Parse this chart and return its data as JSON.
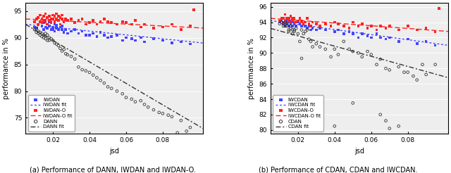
{
  "left_plot": {
    "xlabel": "jsd",
    "ylabel": "performance in %",
    "caption": "(a) Performance of DANN, IWDAN and IWDAN-O.",
    "xlim": [
      0.005,
      0.102
    ],
    "ylim": [
      72,
      96.5
    ],
    "yticks": [
      75,
      80,
      85,
      90,
      95
    ],
    "xticks": [
      0.02,
      0.04,
      0.06,
      0.08
    ],
    "series": {
      "IWDAN": {
        "color": "#4444ff",
        "marker": "s",
        "fit_style": "dotted",
        "scatter_x": [
          0.01,
          0.011,
          0.012,
          0.013,
          0.014,
          0.015,
          0.015,
          0.016,
          0.016,
          0.017,
          0.017,
          0.018,
          0.018,
          0.019,
          0.019,
          0.02,
          0.02,
          0.021,
          0.021,
          0.022,
          0.022,
          0.023,
          0.024,
          0.025,
          0.025,
          0.026,
          0.027,
          0.028,
          0.03,
          0.032,
          0.034,
          0.036,
          0.038,
          0.04,
          0.042,
          0.044,
          0.046,
          0.048,
          0.05,
          0.052,
          0.055,
          0.058,
          0.06,
          0.063,
          0.065,
          0.068,
          0.07,
          0.075,
          0.08,
          0.085,
          0.09,
          0.095
        ],
        "scatter_y": [
          92.0,
          91.8,
          92.5,
          93.0,
          92.2,
          91.5,
          92.8,
          92.0,
          93.2,
          92.5,
          91.8,
          92.2,
          93.0,
          91.5,
          92.8,
          92.0,
          91.5,
          92.5,
          91.2,
          91.8,
          92.3,
          91.5,
          92.0,
          91.5,
          92.2,
          91.0,
          91.5,
          90.8,
          91.2,
          91.5,
          90.8,
          91.2,
          90.5,
          90.5,
          90.8,
          90.2,
          91.0,
          90.5,
          90.0,
          90.2,
          90.5,
          89.5,
          90.0,
          89.8,
          89.5,
          90.0,
          89.2,
          89.8,
          89.5,
          89.0,
          89.2,
          88.8
        ],
        "fit_x": [
          0.005,
          0.102
        ],
        "fit_y": [
          92.5,
          89.0
        ]
      },
      "IWDAN-O": {
        "color": "#ff2222",
        "marker": "s",
        "fit_style": "dashed",
        "scatter_x": [
          0.01,
          0.011,
          0.012,
          0.012,
          0.013,
          0.013,
          0.014,
          0.014,
          0.015,
          0.015,
          0.016,
          0.016,
          0.017,
          0.017,
          0.018,
          0.018,
          0.019,
          0.019,
          0.02,
          0.02,
          0.021,
          0.021,
          0.022,
          0.022,
          0.023,
          0.023,
          0.024,
          0.024,
          0.025,
          0.025,
          0.026,
          0.027,
          0.028,
          0.03,
          0.032,
          0.034,
          0.036,
          0.038,
          0.04,
          0.042,
          0.044,
          0.046,
          0.048,
          0.05,
          0.052,
          0.055,
          0.058,
          0.06,
          0.063,
          0.065,
          0.068,
          0.07,
          0.075,
          0.08,
          0.085,
          0.09,
          0.095,
          0.097
        ],
        "scatter_y": [
          93.0,
          93.5,
          93.8,
          92.5,
          94.2,
          93.0,
          93.5,
          92.8,
          94.0,
          93.2,
          94.5,
          93.0,
          93.8,
          92.5,
          93.2,
          94.0,
          93.5,
          92.8,
          93.5,
          94.2,
          94.0,
          93.0,
          93.5,
          94.5,
          93.2,
          94.0,
          93.8,
          92.5,
          93.5,
          94.2,
          93.0,
          93.5,
          93.2,
          93.5,
          92.8,
          93.2,
          93.5,
          92.5,
          92.8,
          93.2,
          92.5,
          93.0,
          93.5,
          93.0,
          92.8,
          92.5,
          93.0,
          92.8,
          92.5,
          93.2,
          92.0,
          92.5,
          91.8,
          92.0,
          92.5,
          91.5,
          92.2,
          95.2
        ],
        "fit_x": [
          0.005,
          0.102
        ],
        "fit_y": [
          93.5,
          91.8
        ]
      },
      "DANN": {
        "color": "#333333",
        "marker": "o",
        "fit_style": "dashdot",
        "scatter_x": [
          0.01,
          0.011,
          0.011,
          0.012,
          0.012,
          0.013,
          0.013,
          0.014,
          0.014,
          0.015,
          0.015,
          0.016,
          0.016,
          0.017,
          0.017,
          0.018,
          0.018,
          0.019,
          0.02,
          0.021,
          0.022,
          0.023,
          0.024,
          0.025,
          0.026,
          0.027,
          0.028,
          0.03,
          0.032,
          0.034,
          0.036,
          0.038,
          0.04,
          0.042,
          0.044,
          0.046,
          0.048,
          0.05,
          0.052,
          0.055,
          0.058,
          0.06,
          0.063,
          0.065,
          0.068,
          0.07,
          0.072,
          0.075,
          0.078,
          0.08,
          0.083,
          0.085,
          0.088,
          0.09,
          0.093,
          0.095
        ],
        "scatter_y": [
          91.5,
          91.8,
          91.0,
          91.2,
          90.8,
          91.0,
          90.5,
          90.8,
          90.2,
          90.5,
          90.0,
          90.8,
          89.8,
          90.5,
          89.5,
          90.0,
          89.5,
          89.8,
          89.5,
          89.0,
          88.8,
          88.5,
          88.0,
          87.5,
          87.8,
          87.0,
          86.8,
          86.5,
          86.0,
          84.5,
          84.0,
          83.8,
          83.5,
          83.0,
          82.5,
          82.0,
          81.5,
          80.8,
          80.5,
          80.0,
          79.5,
          78.8,
          78.5,
          78.0,
          78.2,
          77.5,
          77.0,
          76.5,
          76.0,
          75.8,
          75.5,
          75.2,
          72.2,
          74.5,
          72.5,
          73.2
        ],
        "fit_x": [
          0.005,
          0.102
        ],
        "fit_y": [
          92.5,
          73.0
        ]
      }
    }
  },
  "right_plot": {
    "xlabel": "jsd",
    "ylabel": "performance in %",
    "caption": "(b) Performance of CDAN, CDAN and IWCDAN.",
    "xlim": [
      0.005,
      0.102
    ],
    "ylim": [
      79.5,
      96.5
    ],
    "yticks": [
      80,
      82,
      84,
      86,
      88,
      90,
      92,
      94,
      96
    ],
    "xticks": [
      0.02,
      0.04,
      0.06,
      0.08
    ],
    "series": {
      "IWCDAN": {
        "color": "#4444ff",
        "marker": "s",
        "fit_style": "dotted",
        "scatter_x": [
          0.01,
          0.011,
          0.012,
          0.012,
          0.013,
          0.013,
          0.014,
          0.014,
          0.015,
          0.015,
          0.016,
          0.016,
          0.017,
          0.017,
          0.018,
          0.018,
          0.019,
          0.02,
          0.021,
          0.022,
          0.022,
          0.023,
          0.024,
          0.025,
          0.026,
          0.027,
          0.028,
          0.03,
          0.032,
          0.035,
          0.038,
          0.04,
          0.042,
          0.045,
          0.048,
          0.05,
          0.053,
          0.055,
          0.058,
          0.06,
          0.063,
          0.065,
          0.068,
          0.07,
          0.075,
          0.08,
          0.085,
          0.09,
          0.095
        ],
        "scatter_y": [
          94.0,
          94.2,
          94.5,
          93.8,
          94.0,
          93.5,
          94.2,
          93.8,
          94.0,
          93.5,
          93.8,
          94.2,
          94.0,
          93.5,
          94.0,
          93.8,
          93.5,
          94.0,
          93.8,
          93.5,
          94.0,
          93.8,
          93.5,
          93.2,
          93.5,
          93.0,
          93.2,
          93.0,
          93.2,
          93.0,
          93.5,
          92.8,
          93.0,
          92.5,
          92.8,
          92.5,
          92.0,
          92.5,
          92.2,
          92.0,
          92.5,
          92.0,
          91.8,
          92.0,
          91.5,
          91.8,
          91.2,
          91.5,
          91.0
        ],
        "fit_x": [
          0.005,
          0.102
        ],
        "fit_y": [
          94.2,
          91.0
        ]
      },
      "IWCDAN-O": {
        "color": "#ff2222",
        "marker": "s",
        "fit_style": "dashed",
        "scatter_x": [
          0.01,
          0.011,
          0.012,
          0.012,
          0.013,
          0.013,
          0.014,
          0.014,
          0.015,
          0.015,
          0.016,
          0.016,
          0.017,
          0.017,
          0.018,
          0.018,
          0.019,
          0.02,
          0.021,
          0.022,
          0.022,
          0.023,
          0.024,
          0.025,
          0.026,
          0.027,
          0.028,
          0.03,
          0.032,
          0.035,
          0.038,
          0.04,
          0.042,
          0.045,
          0.048,
          0.05,
          0.053,
          0.055,
          0.058,
          0.06,
          0.063,
          0.065,
          0.068,
          0.07,
          0.075,
          0.08,
          0.085,
          0.09,
          0.095,
          0.097
        ],
        "scatter_y": [
          94.2,
          94.5,
          94.0,
          94.5,
          95.0,
          94.2,
          94.5,
          94.0,
          94.2,
          94.5,
          94.8,
          94.0,
          94.5,
          94.2,
          94.0,
          94.5,
          94.0,
          94.2,
          94.5,
          94.0,
          94.2,
          93.8,
          94.0,
          94.5,
          93.8,
          93.5,
          94.0,
          93.8,
          93.5,
          93.8,
          93.5,
          94.0,
          93.8,
          93.5,
          93.2,
          94.0,
          93.5,
          93.8,
          93.2,
          93.5,
          93.0,
          93.5,
          93.2,
          93.5,
          93.0,
          93.5,
          93.0,
          93.2,
          92.8,
          95.8
        ],
        "fit_x": [
          0.005,
          0.102
        ],
        "fit_y": [
          94.5,
          92.8
        ]
      },
      "CDAN": {
        "color": "#333333",
        "marker": "o",
        "fit_style": "dashdot",
        "scatter_x": [
          0.01,
          0.011,
          0.012,
          0.012,
          0.013,
          0.013,
          0.014,
          0.014,
          0.015,
          0.015,
          0.016,
          0.016,
          0.017,
          0.017,
          0.018,
          0.018,
          0.019,
          0.02,
          0.021,
          0.022,
          0.022,
          0.023,
          0.024,
          0.025,
          0.026,
          0.027,
          0.028,
          0.03,
          0.032,
          0.035,
          0.038,
          0.04,
          0.042,
          0.045,
          0.048,
          0.05,
          0.053,
          0.055,
          0.058,
          0.06,
          0.063,
          0.065,
          0.068,
          0.07,
          0.075,
          0.078,
          0.08,
          0.083,
          0.085,
          0.088,
          0.09,
          0.095
        ],
        "scatter_y": [
          93.8,
          94.0,
          93.5,
          93.8,
          94.0,
          93.5,
          93.8,
          93.5,
          93.0,
          92.8,
          93.2,
          93.5,
          92.5,
          93.0,
          93.0,
          92.8,
          93.2,
          92.5,
          91.5,
          89.3,
          93.0,
          92.5,
          92.8,
          93.0,
          91.8,
          91.5,
          90.8,
          91.2,
          90.8,
          90.5,
          89.5,
          90.5,
          89.8,
          91.5,
          90.5,
          90.2,
          90.0,
          89.5,
          90.2,
          89.8,
          88.5,
          89.2,
          88.0,
          87.8,
          88.2,
          87.5,
          87.5,
          87.0,
          86.5,
          88.5,
          87.2,
          88.5
        ],
        "scatter_y_extra": [
          80.5,
          83.5,
          80.2,
          81.2,
          82.0,
          80.5
        ],
        "scatter_x_extra": [
          0.04,
          0.05,
          0.07,
          0.068,
          0.065,
          0.075
        ],
        "fit_x": [
          0.005,
          0.102
        ],
        "fit_y": [
          93.2,
          86.8
        ]
      }
    }
  }
}
